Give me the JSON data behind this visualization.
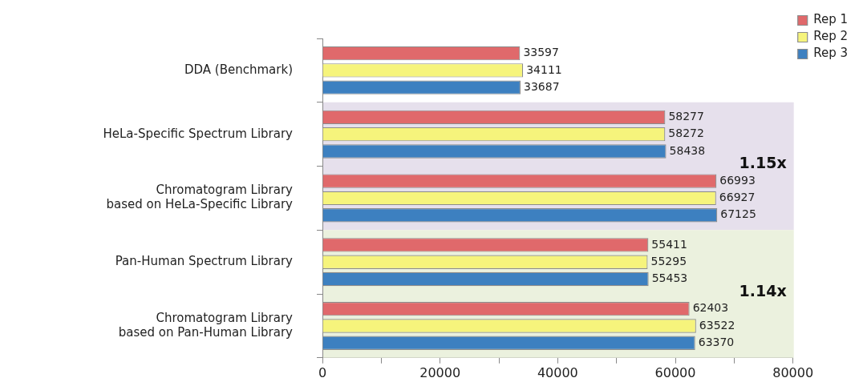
{
  "chart_data": {
    "type": "bar",
    "orientation": "horizontal",
    "categories": [
      "DDA (Benchmark)",
      "HeLa-Specific Spectrum Library",
      "Chromatogram Library\nbased on HeLa-Specific Library",
      "Pan-Human Spectrum Library",
      "Chromatogram Library\nbased on Pan-Human Library"
    ],
    "series": [
      {
        "name": "Rep 1",
        "color": "#e0696b",
        "values": [
          33597,
          58277,
          66993,
          55411,
          62403
        ]
      },
      {
        "name": "Rep 2",
        "color": "#f6f47c",
        "values": [
          34111,
          58272,
          66927,
          55295,
          63522
        ]
      },
      {
        "name": "Rep 3",
        "color": "#3d80c0",
        "values": [
          33687,
          58438,
          67125,
          55453,
          63370
        ]
      }
    ],
    "xlim": [
      0,
      80000
    ],
    "xticks": [
      0,
      {
        "value": 10000,
        "label": null
      },
      20000,
      {
        "value": 30000,
        "label": null
      },
      40000,
      {
        "value": 50000,
        "label": null
      },
      60000,
      {
        "value": 70000,
        "label": null
      },
      80000
    ],
    "bands": [
      {
        "axis": "y",
        "from": "HeLa-Specific Spectrum Library",
        "to": "Chromatogram Library\nbased on HeLa-Specific Library",
        "label": "1.15x",
        "color": "#e6e0ec"
      },
      {
        "axis": "y",
        "from": "Pan-Human Spectrum Library",
        "to": "Chromatogram Library\nbased on Pan-Human Library",
        "label": "1.14x",
        "color": "#ebf1de"
      }
    ],
    "data_labels": true,
    "grid": false,
    "legend": "top right"
  }
}
